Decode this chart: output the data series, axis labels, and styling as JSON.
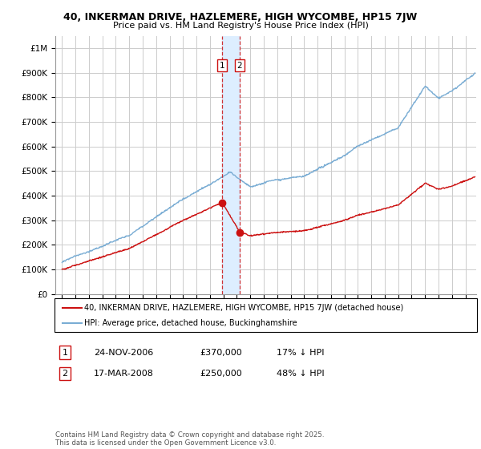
{
  "title": "40, INKERMAN DRIVE, HAZLEMERE, HIGH WYCOMBE, HP15 7JW",
  "subtitle": "Price paid vs. HM Land Registry's House Price Index (HPI)",
  "ylim": [
    0,
    1050000
  ],
  "yticks": [
    0,
    100000,
    200000,
    300000,
    400000,
    500000,
    600000,
    700000,
    800000,
    900000,
    1000000
  ],
  "ytick_labels": [
    "£0",
    "£100K",
    "£200K",
    "£300K",
    "£400K",
    "£500K",
    "£600K",
    "£700K",
    "£800K",
    "£900K",
    "£1M"
  ],
  "hpi_color": "#7aadd4",
  "price_color": "#cc1111",
  "vline_color": "#cc1111",
  "shade_color": "#ddeeff",
  "background_color": "#ffffff",
  "grid_color": "#cccccc",
  "sale1_date": 2006.9,
  "sale1_price": 370000,
  "sale1_label": "1",
  "sale2_date": 2008.21,
  "sale2_price": 250000,
  "sale2_label": "2",
  "legend_line1": "40, INKERMAN DRIVE, HAZLEMERE, HIGH WYCOMBE, HP15 7JW (detached house)",
  "legend_line2": "HPI: Average price, detached house, Buckinghamshire",
  "table_row1": [
    "1",
    "24-NOV-2006",
    "£370,000",
    "17% ↓ HPI"
  ],
  "table_row2": [
    "2",
    "17-MAR-2008",
    "£250,000",
    "48% ↓ HPI"
  ],
  "footnote": "Contains HM Land Registry data © Crown copyright and database right 2025.\nThis data is licensed under the Open Government Licence v3.0.",
  "xlim_start": 1994.5,
  "xlim_end": 2025.8
}
